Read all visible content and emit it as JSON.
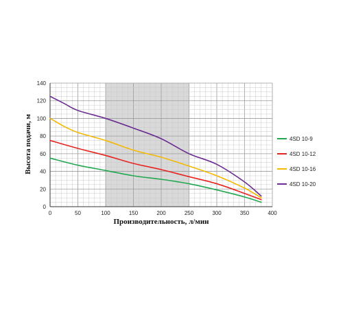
{
  "chart_data": {
    "type": "line",
    "title": "",
    "xlabel": "Производительность, л/мин",
    "ylabel": "Высота подачи, м",
    "xlim": [
      0,
      400
    ],
    "ylim": [
      0,
      140
    ],
    "x_ticks": [
      0,
      50,
      100,
      150,
      200,
      250,
      300,
      350,
      400
    ],
    "y_ticks": [
      0,
      20,
      40,
      60,
      80,
      100,
      120,
      140
    ],
    "grid": true,
    "highlight_range_x": [
      100,
      250
    ],
    "highlight_color": "#d9d9d9",
    "legend_position": "right",
    "series": [
      {
        "name": "4SD 10-9",
        "color": "#1fa84f",
        "x": [
          0,
          50,
          100,
          150,
          200,
          250,
          300,
          350,
          380
        ],
        "y": [
          55,
          47,
          41,
          35,
          31,
          26,
          19,
          11,
          5
        ]
      },
      {
        "name": "4SD 10-12",
        "color": "#e8231f",
        "x": [
          0,
          50,
          100,
          150,
          200,
          250,
          300,
          350,
          380
        ],
        "y": [
          75,
          66,
          58,
          49,
          42,
          34,
          26,
          15,
          8
        ]
      },
      {
        "name": "4SD 10-16",
        "color": "#f5b800",
        "x": [
          0,
          25,
          50,
          100,
          150,
          200,
          250,
          300,
          350,
          380
        ],
        "y": [
          100,
          91,
          84,
          75,
          64,
          56,
          46,
          35,
          21,
          10
        ]
      },
      {
        "name": "4SD 10-20",
        "color": "#6a2d91",
        "x": [
          0,
          25,
          50,
          100,
          150,
          200,
          250,
          300,
          350,
          380
        ],
        "y": [
          125,
          117,
          109,
          100,
          89,
          77,
          60,
          48,
          28,
          12
        ]
      }
    ]
  }
}
